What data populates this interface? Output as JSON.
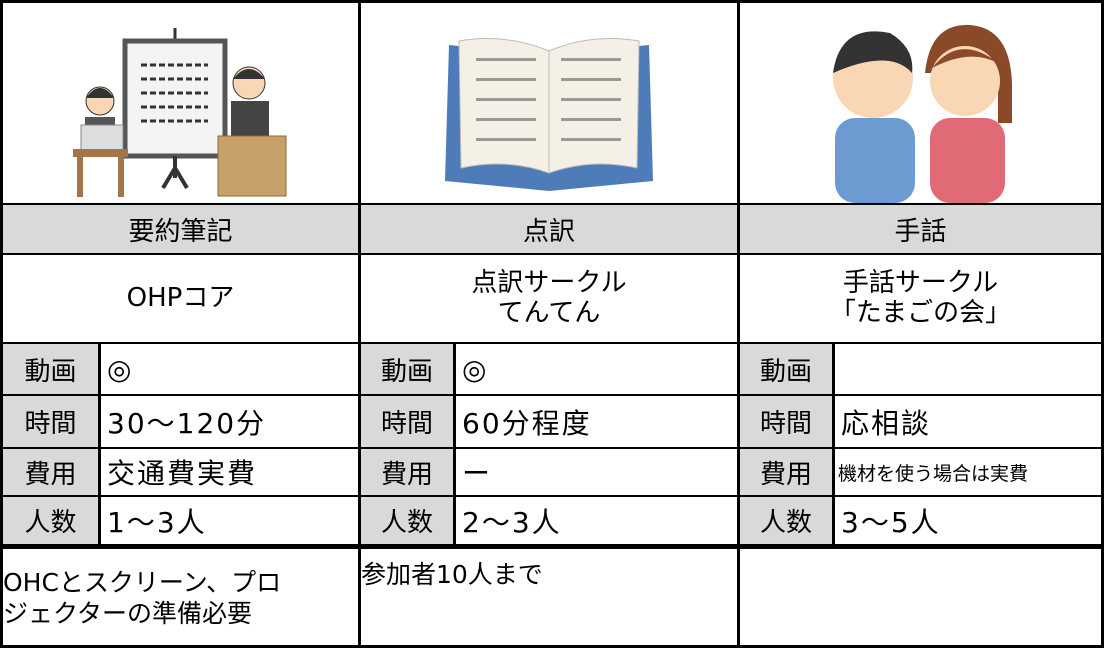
{
  "columns": [
    {
      "title": "要約筆記",
      "organization": [
        "OHPコア"
      ],
      "rows": [
        {
          "label": "動画",
          "value": "◎"
        },
        {
          "label": "時間",
          "value": "30〜120分"
        },
        {
          "label": "費用",
          "value": "交通費実費"
        },
        {
          "label": "人数",
          "value": "1〜3人"
        }
      ],
      "note": [
        "OHCとスクリーン、プロ",
        "ジェクターの準備必要"
      ]
    },
    {
      "title": "点訳",
      "organization": [
        "点訳サークル",
        "てんてん"
      ],
      "rows": [
        {
          "label": "動画",
          "value": "◎"
        },
        {
          "label": "時間",
          "value": "60分程度"
        },
        {
          "label": "費用",
          "value": "ー"
        },
        {
          "label": "人数",
          "value": "2〜3人"
        }
      ],
      "note": [
        "参加者10人まで"
      ]
    },
    {
      "title": "手話",
      "organization": [
        "手話サークル",
        "「たまごの会」"
      ],
      "rows": [
        {
          "label": "動画"
        },
        {
          "label": "時間",
          "value": "応相談"
        },
        {
          "label": "費用",
          "value": "機材を使う場合は実費"
        },
        {
          "label": "人数",
          "value": "3〜5人"
        }
      ]
    }
  ]
}
